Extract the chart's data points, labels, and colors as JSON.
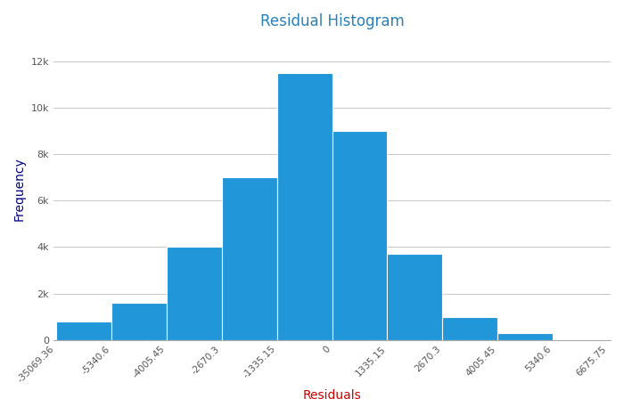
{
  "title": "Residual Histogram",
  "title_color": "#2980b9",
  "xlabel": "Residuals",
  "xlabel_color": "#cc0000",
  "ylabel": "Frequency",
  "ylabel_color": "#000080",
  "bar_color": "#2196d8",
  "bar_edgecolor": "white",
  "tick_labels": [
    "-35069.36",
    "-5340.6",
    "-4005.45",
    "-2670.3",
    "-1335.15",
    "0",
    "1335.15",
    "2670.3",
    "4005.45",
    "5340.6",
    "6675.75"
  ],
  "bar_heights": [
    800,
    1600,
    4000,
    7000,
    11500,
    9000,
    3700,
    1000,
    300,
    0
  ],
  "num_bars": 10,
  "ylim": [
    0,
    13000
  ],
  "yticks": [
    0,
    2000,
    4000,
    6000,
    8000,
    10000,
    12000
  ],
  "ytick_labels": [
    "0",
    "2k",
    "4k",
    "6k",
    "8k",
    "10k",
    "12k"
  ],
  "grid_color": "#cccccc",
  "background_color": "#ffffff",
  "figsize": [
    7.0,
    4.66
  ],
  "dpi": 100
}
